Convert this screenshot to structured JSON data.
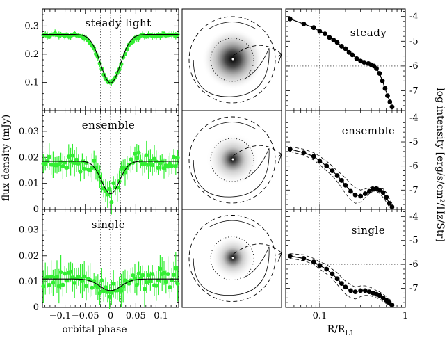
{
  "chart_data": [
    {
      "type": "scatter",
      "panel_title": "steady light",
      "xlim": [
        -0.135,
        0.135
      ],
      "ylim": [
        0.0,
        0.36
      ],
      "yticks": [
        "0.1",
        "0.2",
        "0.3"
      ],
      "ytick_values": [
        0.1,
        0.2,
        0.3
      ],
      "phase_lines": [
        -0.02,
        0.0,
        0.02
      ],
      "points": {
        "color": "#33ee33",
        "baseline": 0.268,
        "depth": 0.168,
        "width": 0.03,
        "scatter": 0.006,
        "errbar": 0.01
      },
      "model": {
        "baseline": 0.27,
        "depth": 0.172,
        "width": 0.028
      }
    },
    {
      "type": "scatter",
      "panel_title": "ensemble",
      "xlim": [
        -0.135,
        0.135
      ],
      "ylim": [
        0.0,
        0.038
      ],
      "yticks": [
        "0",
        "0.01",
        "0.02",
        "0.03"
      ],
      "ytick_values": [
        0,
        0.01,
        0.02,
        0.03
      ],
      "phase_lines": [
        -0.02,
        0.0,
        0.02
      ],
      "points": {
        "color": "#33ee33",
        "baseline": 0.018,
        "depth": 0.012,
        "width": 0.025,
        "scatter": 0.003,
        "errbar": 0.004
      },
      "model": {
        "baseline": 0.0185,
        "depth": 0.0125,
        "width": 0.025
      }
    },
    {
      "type": "scatter",
      "panel_title": "single",
      "xlim": [
        -0.135,
        0.135
      ],
      "ylim": [
        0.0,
        0.038
      ],
      "yticks": [
        "0",
        "0.01",
        "0.02",
        "0.03"
      ],
      "ytick_values": [
        0,
        0.01,
        0.02,
        0.03
      ],
      "phase_lines": [
        -0.02,
        0.0,
        0.02
      ],
      "points": {
        "color": "#33ee33",
        "baseline": 0.011,
        "depth": 0.005,
        "width": 0.03,
        "scatter": 0.0035,
        "errbar": 0.005
      },
      "model": {
        "baseline": 0.011,
        "depth": 0.0045,
        "width": 0.03
      }
    },
    {
      "type": "line",
      "panel_title": "steady",
      "xscale": "log",
      "xlim": [
        0.04,
        1.0
      ],
      "ylim": [
        -7.8,
        -3.7
      ],
      "yticks": [
        "-4",
        "-5",
        "-6",
        "-7"
      ],
      "ytick_values": [
        -4,
        -5,
        -6,
        -7
      ],
      "x": [
        0.045,
        0.065,
        0.085,
        0.1,
        0.115,
        0.13,
        0.145,
        0.16,
        0.18,
        0.2,
        0.22,
        0.24,
        0.27,
        0.3,
        0.33,
        0.37,
        0.4,
        0.43,
        0.46,
        0.5,
        0.54,
        0.58,
        0.62,
        0.66,
        0.7
      ],
      "y": [
        -4.1,
        -4.3,
        -4.45,
        -4.6,
        -4.7,
        -4.85,
        -4.95,
        -5.05,
        -5.2,
        -5.3,
        -5.45,
        -5.55,
        -5.7,
        -5.8,
        -5.85,
        -5.9,
        -5.95,
        -6.0,
        -6.1,
        -6.3,
        -6.6,
        -6.9,
        -7.2,
        -7.45,
        -7.65
      ],
      "lower": [],
      "upper": []
    },
    {
      "type": "line",
      "panel_title": "ensemble",
      "xscale": "log",
      "xlim": [
        0.04,
        1.0
      ],
      "ylim": [
        -7.8,
        -3.7
      ],
      "yticks": [
        "-4",
        "-5",
        "-6",
        "-7"
      ],
      "ytick_values": [
        -4,
        -5,
        -6,
        -7
      ],
      "x": [
        0.045,
        0.065,
        0.085,
        0.1,
        0.12,
        0.14,
        0.16,
        0.18,
        0.2,
        0.23,
        0.26,
        0.3,
        0.34,
        0.38,
        0.42,
        0.46,
        0.5,
        0.55,
        0.6,
        0.65,
        0.7
      ],
      "y": [
        -5.3,
        -5.45,
        -5.6,
        -5.8,
        -6.0,
        -6.2,
        -6.4,
        -6.6,
        -6.8,
        -7.05,
        -7.2,
        -7.25,
        -7.15,
        -7.05,
        -6.95,
        -6.95,
        -7.0,
        -7.1,
        -7.3,
        -7.55,
        -7.7
      ],
      "lower": [
        -5.4,
        -5.55,
        -5.75,
        -5.95,
        -6.2,
        -6.4,
        -6.65,
        -6.9,
        -7.15,
        -7.4,
        -7.55,
        -7.5,
        -7.3,
        -7.15,
        -7.05,
        -7.05,
        -7.15,
        -7.3,
        -7.5,
        -7.7,
        -7.8
      ],
      "upper": [
        -5.2,
        -5.3,
        -5.45,
        -5.6,
        -5.8,
        -6.0,
        -6.2,
        -6.35,
        -6.5,
        -6.75,
        -6.9,
        -7.0,
        -6.95,
        -6.9,
        -6.85,
        -6.85,
        -6.9,
        -6.95,
        -7.1,
        -7.35,
        -7.55
      ]
    },
    {
      "type": "line",
      "panel_title": "single",
      "xscale": "log",
      "xlim": [
        0.04,
        1.0
      ],
      "ylim": [
        -7.8,
        -3.7
      ],
      "yticks": [
        "-4",
        "-5",
        "-6",
        "-7"
      ],
      "ytick_values": [
        -4,
        -5,
        -6,
        -7
      ],
      "x": [
        0.045,
        0.065,
        0.085,
        0.1,
        0.12,
        0.14,
        0.16,
        0.18,
        0.2,
        0.23,
        0.26,
        0.3,
        0.34,
        0.38,
        0.42,
        0.46,
        0.5,
        0.55,
        0.6,
        0.65,
        0.7
      ],
      "y": [
        -5.65,
        -5.75,
        -5.9,
        -6.05,
        -6.2,
        -6.4,
        -6.6,
        -6.8,
        -6.95,
        -7.1,
        -7.15,
        -7.1,
        -7.1,
        -7.15,
        -7.2,
        -7.25,
        -7.3,
        -7.4,
        -7.5,
        -7.6,
        -7.7
      ],
      "lower": [
        -5.75,
        -5.85,
        -6.0,
        -6.2,
        -6.4,
        -6.6,
        -6.85,
        -7.05,
        -7.25,
        -7.4,
        -7.45,
        -7.35,
        -7.3,
        -7.3,
        -7.35,
        -7.4,
        -7.45,
        -7.55,
        -7.65,
        -7.72,
        -7.8
      ],
      "upper": [
        -5.55,
        -5.6,
        -5.75,
        -5.9,
        -6.0,
        -6.2,
        -6.35,
        -6.55,
        -6.7,
        -6.85,
        -6.95,
        -6.9,
        -6.9,
        -6.95,
        -7.0,
        -7.1,
        -7.15,
        -7.25,
        -7.35,
        -7.45,
        -7.55
      ]
    }
  ],
  "labels": {
    "left_ylabel": "flux density (mJy)",
    "right_ylabel": "log intensity [erg/s/cm²/Hz/Str]",
    "left_xlabel": "orbital phase",
    "right_xlabel_main": "R/R",
    "right_xlabel_sub": "L1",
    "left_xticks": [
      "−0.1",
      "−0.05",
      "0",
      "0.05",
      "0.1"
    ],
    "left_xtick_values": [
      -0.1,
      -0.05,
      0,
      0.05,
      0.1
    ],
    "right_xticks": [
      "0.1",
      "1"
    ],
    "right_xtick_values": [
      0.1,
      1
    ]
  },
  "maps": [
    {
      "name": "steady-map",
      "blob_strength": 1.0
    },
    {
      "name": "ensemble-map",
      "blob_strength": 0.85
    },
    {
      "name": "single-map",
      "blob_strength": 0.7
    }
  ]
}
